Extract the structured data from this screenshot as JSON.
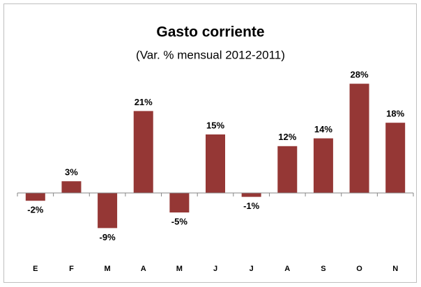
{
  "chart_data": {
    "type": "bar",
    "title": "Gasto corriente",
    "subtitle": "(Var. % mensual 2012-2011)",
    "categories": [
      "E",
      "F",
      "M",
      "A",
      "M",
      "J",
      "J",
      "A",
      "S",
      "O",
      "N"
    ],
    "values": [
      -2,
      3,
      -9,
      21,
      -5,
      15,
      -1,
      12,
      14,
      28,
      18
    ],
    "value_labels": [
      "-2%",
      "3%",
      "-9%",
      "21%",
      "-5%",
      "15%",
      "-1%",
      "12%",
      "14%",
      "28%",
      "18%"
    ],
    "color": "#953735",
    "ylim": [
      -15,
      30
    ]
  }
}
